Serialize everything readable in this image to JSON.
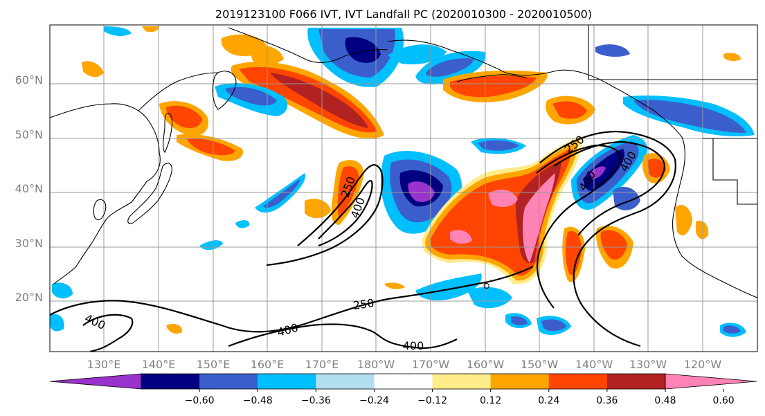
{
  "title": "2019123100 F066 IVT, IVT Landfall PC (2020010300 - 2020010500)",
  "map": {
    "lon_labels": [
      "130°E",
      "140°E",
      "150°E",
      "160°E",
      "170°E",
      "180°W",
      "170°W",
      "160°W",
      "150°W",
      "140°W",
      "130°W",
      "120°W"
    ],
    "lat_labels": [
      "20°N",
      "30°N",
      "40°N",
      "50°N",
      "60°N"
    ],
    "contour_labels": [
      "250",
      "400",
      "250",
      "400",
      "250",
      "400",
      "400",
      "400"
    ],
    "colors": {
      "c_m060": "#9a32cd",
      "c_m048": "#000080",
      "c_m036": "#3a5fcd",
      "c_m024": "#00bfff",
      "c_m012": "#b2dfee",
      "c_0": "#ffffff",
      "c_p012": "#ffec8b",
      "c_p024": "#ffa500",
      "c_p036": "#ff4500",
      "c_p048": "#b22222",
      "c_p060": "#ff83b4"
    }
  },
  "colorbar": {
    "ticks": [
      "−0.60",
      "−0.48",
      "−0.36",
      "−0.24",
      "−0.12",
      "0.12",
      "0.24",
      "0.36",
      "0.48",
      "0.60"
    ],
    "colors": [
      "#9a32cd",
      "#000080",
      "#3a5fcd",
      "#00bfff",
      "#b2dfee",
      "#ffffff",
      "#ffec8b",
      "#ffa500",
      "#ff4500",
      "#b22222",
      "#ff83b4"
    ]
  }
}
